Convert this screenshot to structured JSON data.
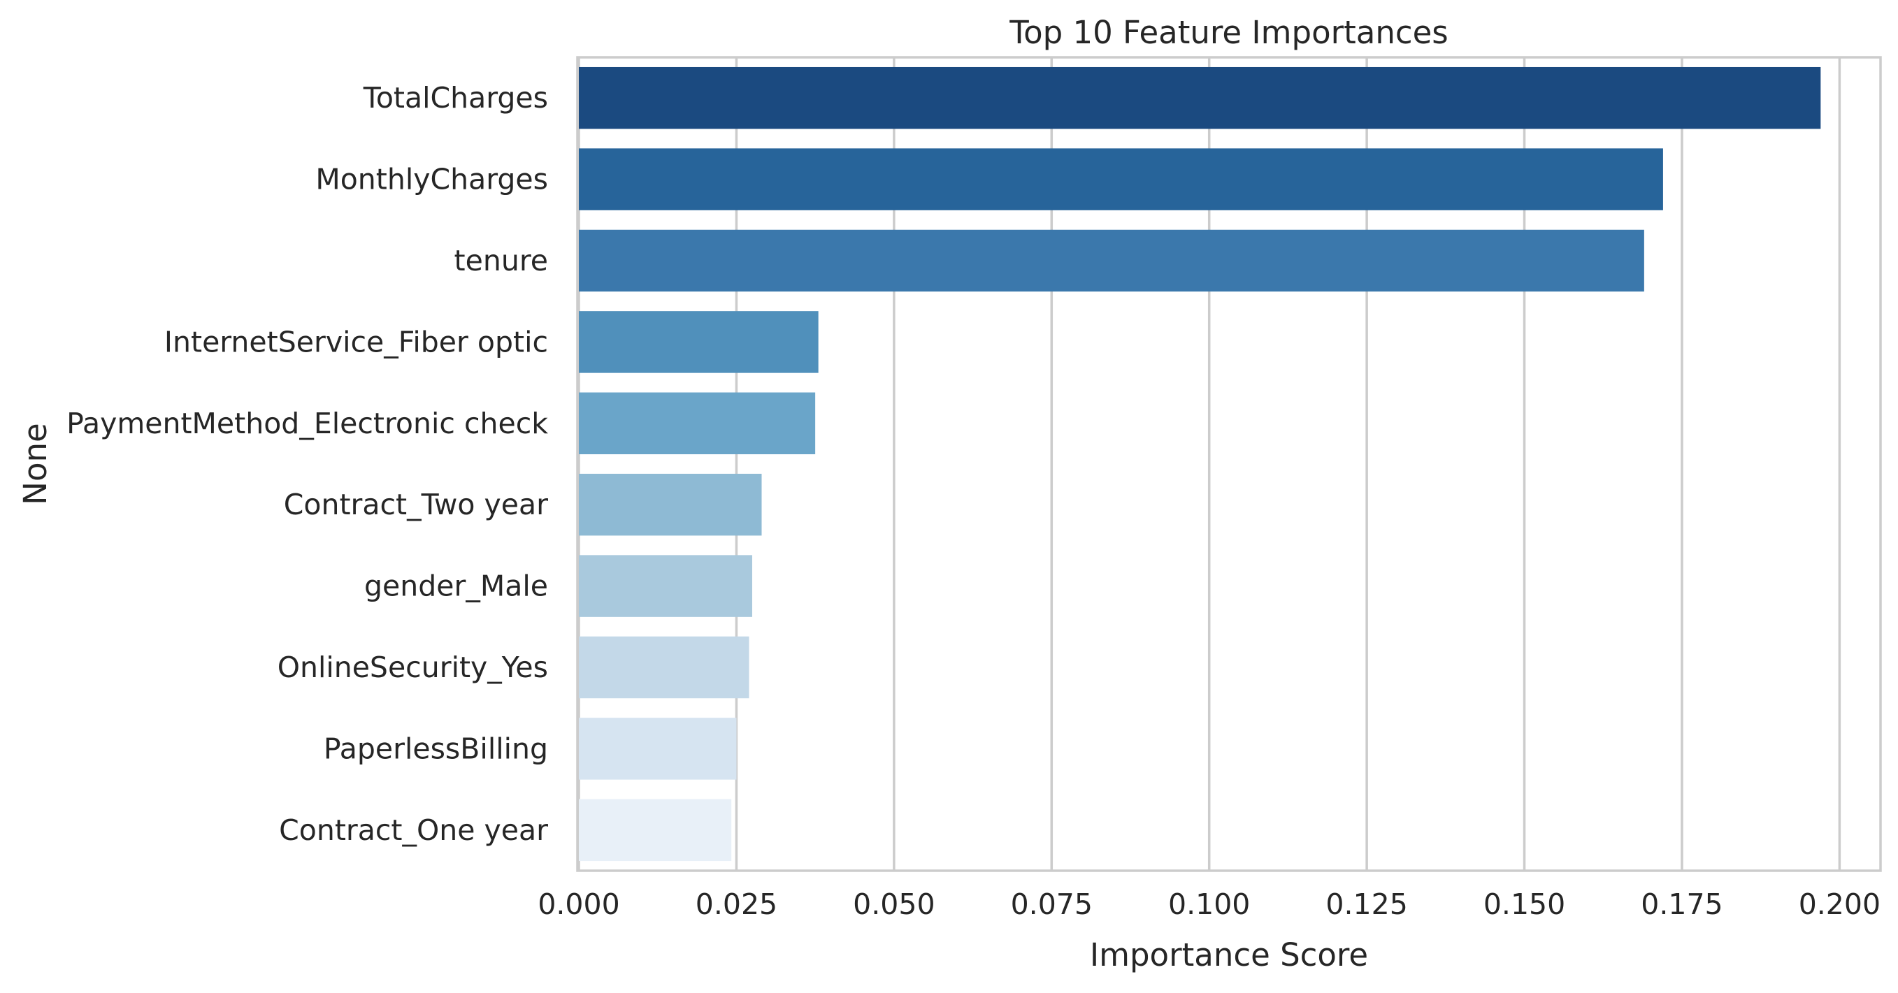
{
  "chart_data": {
    "type": "bar",
    "orientation": "horizontal",
    "title": "Top 10 Feature Importances",
    "xlabel": "Importance Score",
    "ylabel": "None",
    "xlim": [
      0,
      0.2065
    ],
    "xticks": [
      0.0,
      0.025,
      0.05,
      0.075,
      0.1,
      0.125,
      0.15,
      0.175,
      0.2
    ],
    "xtick_labels": [
      "0.000",
      "0.025",
      "0.050",
      "0.075",
      "0.100",
      "0.125",
      "0.150",
      "0.175",
      "0.200"
    ],
    "grid": "vertical",
    "categories": [
      "TotalCharges",
      "MonthlyCharges",
      "tenure",
      "InternetService_Fiber optic",
      "PaymentMethod_Electronic check",
      "Contract_Two year",
      "gender_Male",
      "OnlineSecurity_Yes",
      "PaperlessBilling",
      "Contract_One year"
    ],
    "values": [
      0.197,
      0.172,
      0.169,
      0.038,
      0.0375,
      0.029,
      0.0275,
      0.027,
      0.025,
      0.0242
    ],
    "colors": [
      "#1b4a80",
      "#27649a",
      "#3b78ac",
      "#5090bb",
      "#6aa5c9",
      "#8ebad4",
      "#a9c9dd",
      "#c3d8e8",
      "#d6e4f1",
      "#e8f0f8"
    ]
  }
}
